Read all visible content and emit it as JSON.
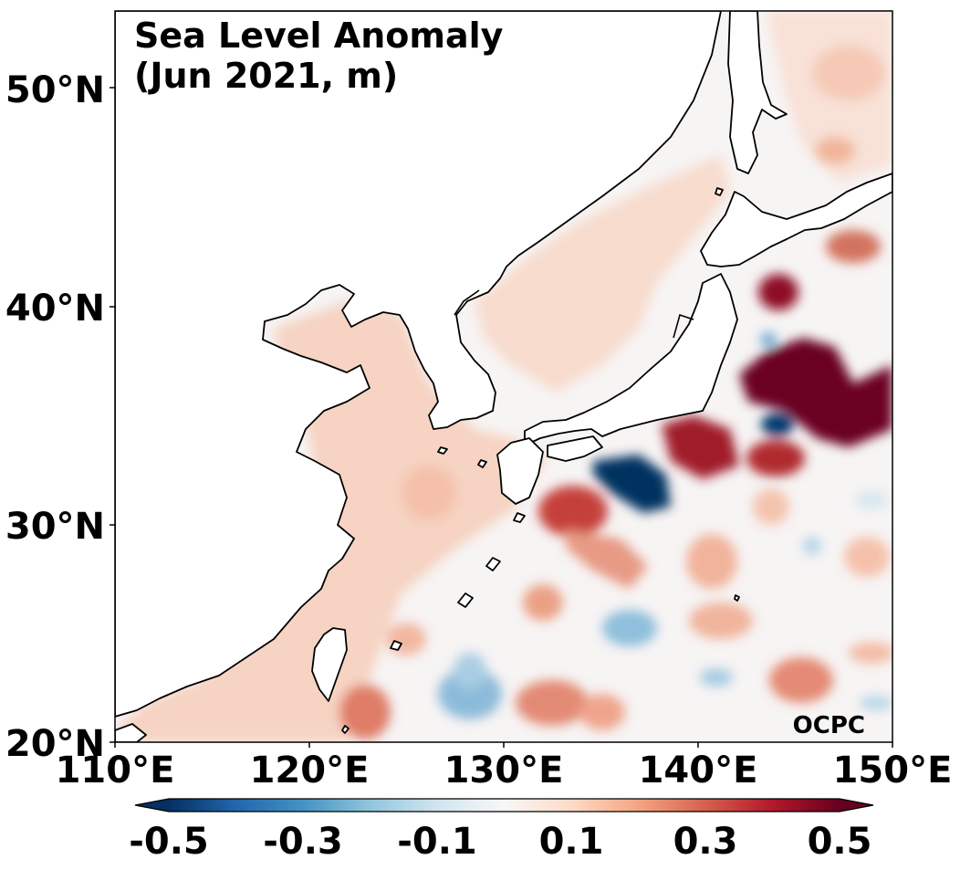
{
  "map": {
    "title_line1": "Sea Level Anomaly",
    "title_line2": "(Jun 2021, m)",
    "watermark": "OCPC",
    "lon_labels": [
      "110°E",
      "120°E",
      "130°E",
      "140°E",
      "150°E"
    ],
    "lat_labels": [
      "20°N",
      "30°N",
      "40°N",
      "50°N"
    ],
    "extent": {
      "lon": [
        110,
        150
      ],
      "lat": [
        20,
        53.5
      ]
    }
  },
  "colorbar": {
    "tick_labels": [
      "-0.5",
      "-0.3",
      "-0.1",
      "0.1",
      "0.3",
      "0.5"
    ],
    "range": [
      -0.5,
      0.5
    ],
    "colormap": [
      "#053061",
      "#2166ac",
      "#4393c3",
      "#92c5de",
      "#d1e5f0",
      "#f7f7f7",
      "#fddbc7",
      "#f4a582",
      "#d6604d",
      "#b2182b",
      "#67001f"
    ]
  },
  "colors": {
    "land": "#ffffff",
    "ocean_neutral": "#f7f4f4",
    "coastline": "#000000"
  }
}
